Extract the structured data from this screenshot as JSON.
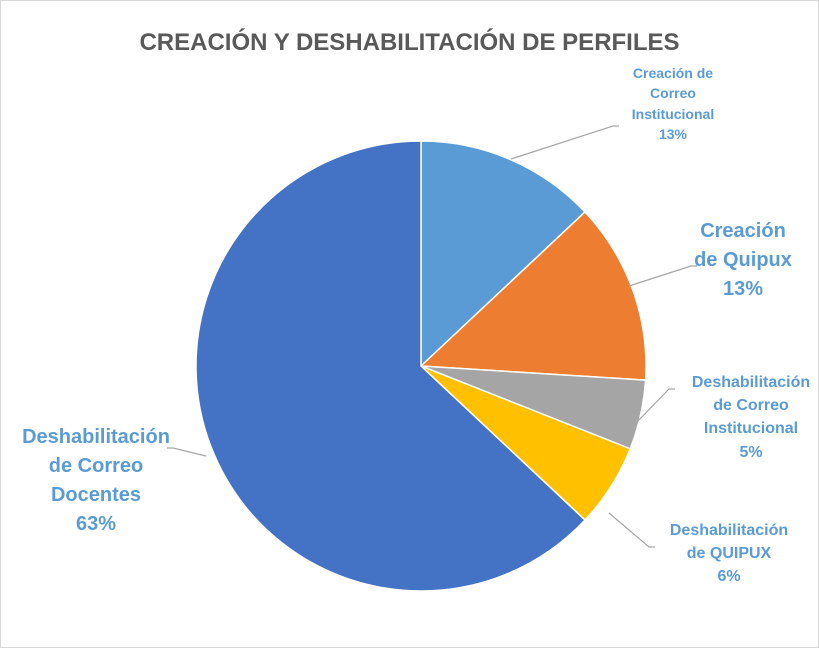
{
  "chart_data": {
    "type": "pie",
    "title": "CREACIÓN Y DESHABILITACIÓN DE PERFILES",
    "categories": [
      "Creación de Correo Institucional",
      "Creación de Quipux",
      "Deshabilitación de Correo Institucional",
      "Deshabilitación de QUIPUX",
      "Deshabilitación de Correo Docentes"
    ],
    "values": [
      13,
      13,
      5,
      6,
      63
    ],
    "value_labels": [
      "13%",
      "13%",
      "5%",
      "6%",
      "63%"
    ],
    "colors": [
      "#5b9bd5",
      "#ed7d31",
      "#a5a5a5",
      "#ffc000",
      "#4472c4"
    ]
  }
}
